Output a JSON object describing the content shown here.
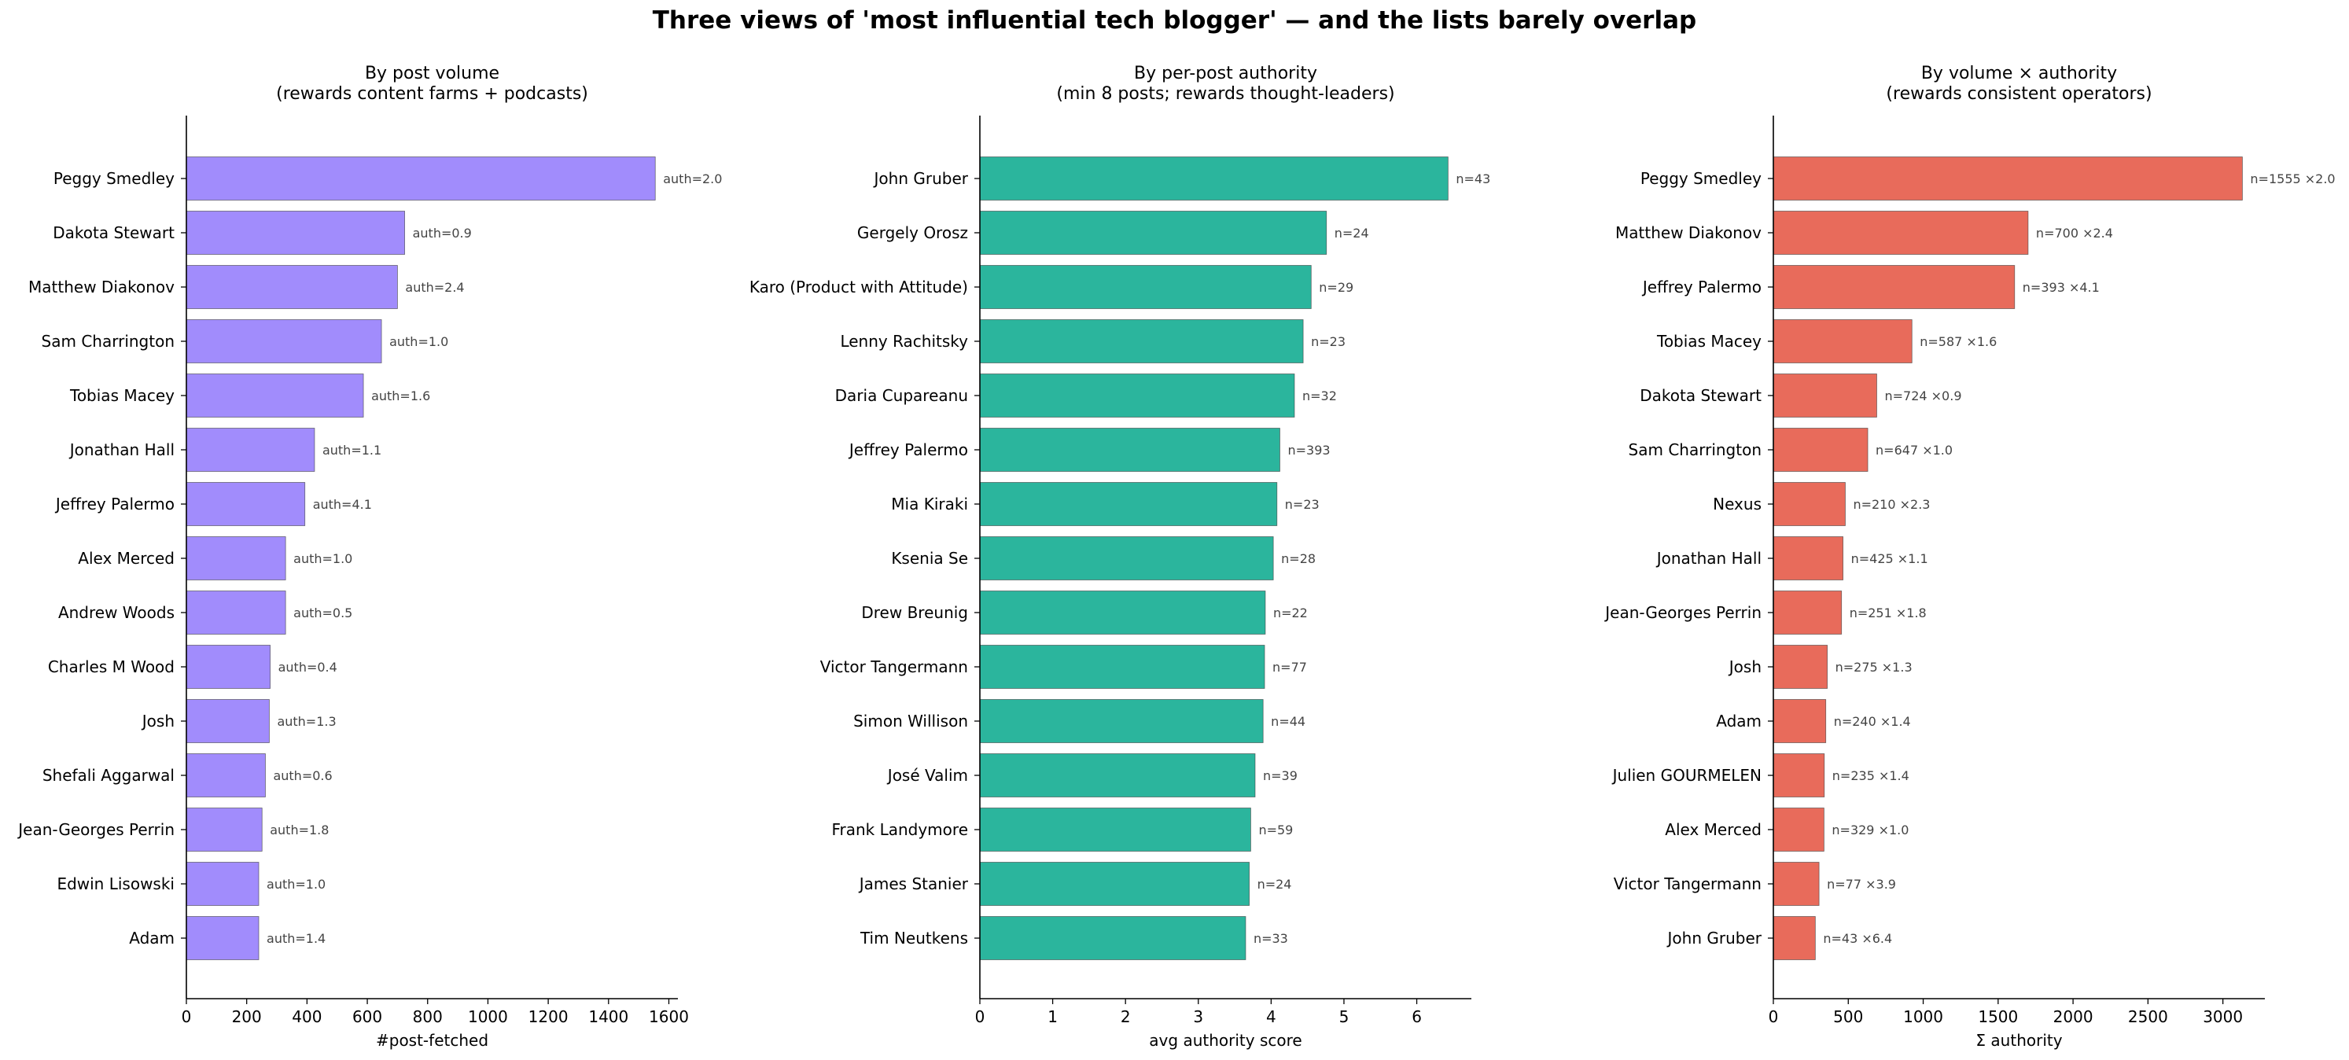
{
  "figure_title": "Three views of 'most influential tech blogger' — and the lists barely overlap",
  "chart_data": [
    {
      "type": "bar",
      "orientation": "horizontal",
      "title_line1": "By post volume",
      "title_line2": "(rewards content farms + podcasts)",
      "xlabel": "#post-fetched",
      "ylabel": "",
      "xlim": [
        0,
        1630
      ],
      "xticks": [
        0,
        200,
        400,
        600,
        800,
        1000,
        1200,
        1400,
        1600
      ],
      "color": "#a18cfc",
      "grid": false,
      "categories": [
        "Peggy Smedley",
        "Dakota Stewart",
        "Matthew Diakonov",
        "Sam Charrington",
        "Tobias Macey",
        "Jonathan Hall",
        "Jeffrey Palermo",
        "Alex Merced",
        "Andrew Woods",
        "Charles M Wood",
        "Josh",
        "Shefali Aggarwal",
        "Jean-Georges Perrin",
        "Edwin Lisowski",
        "Adam"
      ],
      "values": [
        1555,
        724,
        700,
        647,
        587,
        425,
        393,
        329,
        329,
        278,
        275,
        262,
        251,
        240,
        240
      ],
      "annotations": [
        "auth=2.0",
        "auth=0.9",
        "auth=2.4",
        "auth=1.0",
        "auth=1.6",
        "auth=1.1",
        "auth=4.1",
        "auth=1.0",
        "auth=0.5",
        "auth=0.4",
        "auth=1.3",
        "auth=0.6",
        "auth=1.8",
        "auth=1.0",
        "auth=1.4"
      ]
    },
    {
      "type": "bar",
      "orientation": "horizontal",
      "title_line1": "By per-post authority",
      "title_line2": "(min 8 posts; rewards thought-leaders)",
      "xlabel": "avg authority score",
      "ylabel": "",
      "xlim": [
        0,
        6.75
      ],
      "xticks": [
        0,
        1,
        2,
        3,
        4,
        5,
        6
      ],
      "color": "#2bb59d",
      "grid": false,
      "categories": [
        "John Gruber",
        "Gergely Orosz",
        "Karo (Product with Attitude)",
        "Lenny Rachitsky",
        "Daria Cupareanu",
        "Jeffrey Palermo",
        "Mia Kiraki",
        "Ksenia Se",
        "Drew Breunig",
        "Victor Tangermann",
        "Simon Willison",
        "José Valim",
        "Frank Landymore",
        "James Stanier",
        "Tim Neutkens"
      ],
      "values": [
        6.43,
        4.76,
        4.55,
        4.44,
        4.32,
        4.12,
        4.08,
        4.03,
        3.92,
        3.91,
        3.89,
        3.78,
        3.72,
        3.7,
        3.65
      ],
      "annotations": [
        "n=43",
        "n=24",
        "n=29",
        "n=23",
        "n=32",
        "n=393",
        "n=23",
        "n=28",
        "n=22",
        "n=77",
        "n=44",
        "n=39",
        "n=59",
        "n=24",
        "n=33"
      ]
    },
    {
      "type": "bar",
      "orientation": "horizontal",
      "title_line1": "By volume × authority",
      "title_line2": "(rewards consistent operators)",
      "xlabel": "Σ authority",
      "ylabel": "",
      "xlim": [
        0,
        3280
      ],
      "xticks": [
        0,
        500,
        1000,
        1500,
        2000,
        2500,
        3000
      ],
      "color": "#e86b5b",
      "grid": false,
      "categories": [
        "Peggy Smedley",
        "Matthew Diakonov",
        "Jeffrey Palermo",
        "Tobias Macey",
        "Dakota Stewart",
        "Sam Charrington",
        "Nexus",
        "Jonathan Hall",
        "Jean-Georges Perrin",
        "Josh",
        "Adam",
        "Julien GOURMELEN",
        "Alex Merced",
        "Victor Tangermann",
        "John Gruber"
      ],
      "values": [
        3130,
        1700,
        1610,
        925,
        690,
        630,
        480,
        465,
        455,
        360,
        350,
        340,
        338,
        305,
        280
      ],
      "annotations": [
        "n=1555 ×2.0",
        "n=700 ×2.4",
        "n=393 ×4.1",
        "n=587 ×1.6",
        "n=724 ×0.9",
        "n=647 ×1.0",
        "n=210 ×2.3",
        "n=425 ×1.1",
        "n=251 ×1.8",
        "n=275 ×1.3",
        "n=240 ×1.4",
        "n=235 ×1.4",
        "n=329 ×1.0",
        "n=77 ×3.9",
        "n=43 ×6.4"
      ]
    }
  ]
}
